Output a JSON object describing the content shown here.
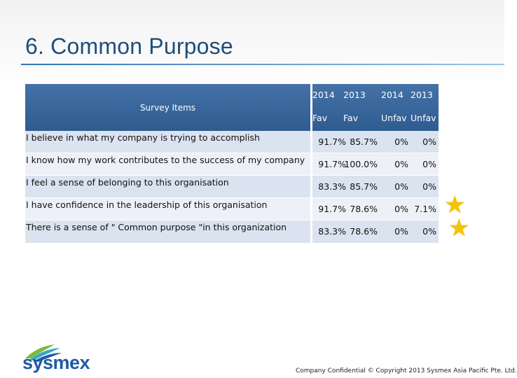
{
  "slide": {
    "title": "6. Common Purpose",
    "footer": "Company Confidential © Copyright 2013 Sysmex Asia Pacific Pte. Ltd.",
    "logo_text": "sysmex"
  },
  "table": {
    "header": {
      "items_label": "Survey Items",
      "columns": [
        {
          "year": "2014",
          "type": "Fav"
        },
        {
          "year": "2013",
          "type": "Fav"
        },
        {
          "year": "2014",
          "type": "Unfav"
        },
        {
          "year": "2013",
          "type": "Unfav"
        }
      ]
    },
    "rows": [
      {
        "item": "I believe in what my company is trying to accomplish",
        "v1": "91.7%",
        "v2": "85.7%",
        "v3": "0%",
        "v4": "0%"
      },
      {
        "item": "I know how my work contributes to the success of my company",
        "v1": "91.7%",
        "v2": "100.0%",
        "v3": "0%",
        "v4": "0%"
      },
      {
        "item": "I feel a sense of belonging to this organisation",
        "v1": "83.3%",
        "v2": "85.7%",
        "v3": "0%",
        "v4": "0%"
      },
      {
        "item": "I have confidence in the leadership of this organisation",
        "v1": "91.7%",
        "v2": "78.6%",
        "v3": "0%",
        "v4": "7.1%"
      },
      {
        "item": "There is a sense of \" Common purpose \"in this organization",
        "v1": "83.3%",
        "v2": "78.6%",
        "v3": "0%",
        "v4": "0%"
      }
    ]
  },
  "icons": {
    "star_color": "#f5c400",
    "stars": [
      "star-icon",
      "star-icon"
    ]
  }
}
